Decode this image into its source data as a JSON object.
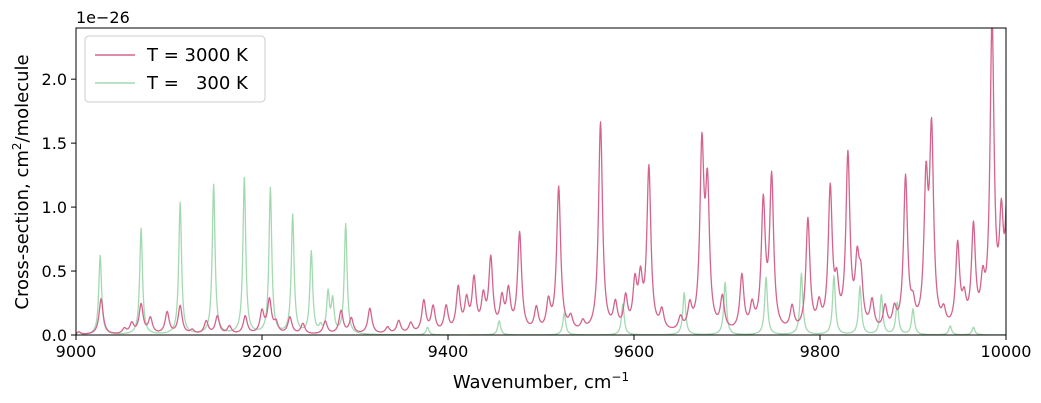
{
  "chart_data": {
    "type": "line",
    "xlabel": "Wavenumber, cm",
    "xlabel_sup": "−1",
    "ylabel": "Cross-section, cm",
    "ylabel_sup": "2",
    "ylabel_tail": "/molecule",
    "offset_text": "1e−26",
    "xlim": [
      9000,
      10000
    ],
    "ylim": [
      0,
      2.4
    ],
    "x_ticks": [
      "9000",
      "9200",
      "9400",
      "9600",
      "9800",
      "10000"
    ],
    "y_ticks": [
      "0.0",
      "0.5",
      "1.0",
      "1.5",
      "2.0"
    ],
    "legend_position": "upper-left",
    "grid": false,
    "series": [
      {
        "name": "T = 3000 K",
        "color": "#d4638d",
        "width_cm1": 2.6,
        "peaks": [
          [
            9003,
            0.02
          ],
          [
            9027,
            0.28
          ],
          [
            9052,
            0.04
          ],
          [
            9060,
            0.08
          ],
          [
            9070,
            0.23
          ],
          [
            9080,
            0.12
          ],
          [
            9098,
            0.17
          ],
          [
            9112,
            0.22
          ],
          [
            9125,
            0.03
          ],
          [
            9140,
            0.1
          ],
          [
            9152,
            0.14
          ],
          [
            9165,
            0.06
          ],
          [
            9182,
            0.14
          ],
          [
            9200,
            0.17
          ],
          [
            9208,
            0.26
          ],
          [
            9215,
            0.08
          ],
          [
            9230,
            0.13
          ],
          [
            9244,
            0.08
          ],
          [
            9268,
            0.1
          ],
          [
            9285,
            0.18
          ],
          [
            9296,
            0.12
          ],
          [
            9316,
            0.2
          ],
          [
            9335,
            0.05
          ],
          [
            9347,
            0.1
          ],
          [
            9360,
            0.08
          ],
          [
            9374,
            0.25
          ],
          [
            9384,
            0.2
          ],
          [
            9398,
            0.2
          ],
          [
            9411,
            0.34
          ],
          [
            9420,
            0.23
          ],
          [
            9428,
            0.4
          ],
          [
            9438,
            0.25
          ],
          [
            9446,
            0.56
          ],
          [
            9458,
            0.24
          ],
          [
            9465,
            0.3
          ],
          [
            9477,
            0.77
          ],
          [
            9495,
            0.18
          ],
          [
            9508,
            0.22
          ],
          [
            9519,
            1.13
          ],
          [
            9532,
            0.1
          ],
          [
            9545,
            0.07
          ],
          [
            9564,
            1.64
          ],
          [
            9580,
            0.2
          ],
          [
            9591,
            0.25
          ],
          [
            9601,
            0.35
          ],
          [
            9607,
            0.36
          ],
          [
            9616,
            1.27
          ],
          [
            9630,
            0.15
          ],
          [
            9650,
            0.1
          ],
          [
            9660,
            0.18
          ],
          [
            9673,
            1.39
          ],
          [
            9679,
            1.06
          ],
          [
            9695,
            0.25
          ],
          [
            9716,
            0.43
          ],
          [
            9727,
            0.18
          ],
          [
            9739,
            0.98
          ],
          [
            9748,
            1.18
          ],
          [
            9770,
            0.18
          ],
          [
            9787,
            0.87
          ],
          [
            9799,
            0.18
          ],
          [
            9811,
            1.09
          ],
          [
            9818,
            0.3
          ],
          [
            9830,
            1.35
          ],
          [
            9840,
            0.47
          ],
          [
            9844,
            0.35
          ],
          [
            9856,
            0.22
          ],
          [
            9870,
            0.18
          ],
          [
            9880,
            0.15
          ],
          [
            9892,
            1.19
          ],
          [
            9900,
            0.15
          ],
          [
            9914,
            1.08
          ],
          [
            9920,
            1.49
          ],
          [
            9933,
            0.12
          ],
          [
            9948,
            0.65
          ],
          [
            9955,
            0.2
          ],
          [
            9965,
            0.78
          ],
          [
            9975,
            0.3
          ],
          [
            9985,
            2.38
          ],
          [
            9995,
            0.75
          ],
          [
            10002,
            1.22
          ]
        ]
      },
      {
        "name": "T =   300 K",
        "color": "#a3d9b1",
        "width_cm1": 1.8,
        "peaks": [
          [
            9003,
            0.02
          ],
          [
            9026,
            0.62
          ],
          [
            9070,
            0.83
          ],
          [
            9112,
            1.03
          ],
          [
            9148,
            1.17
          ],
          [
            9181,
            1.22
          ],
          [
            9209,
            1.14
          ],
          [
            9233,
            0.93
          ],
          [
            9253,
            0.64
          ],
          [
            9263,
            0.05
          ],
          [
            9271,
            0.31
          ],
          [
            9276,
            0.25
          ],
          [
            9290,
            0.86
          ],
          [
            9378,
            0.06
          ],
          [
            9455,
            0.11
          ],
          [
            9525,
            0.17
          ],
          [
            9588,
            0.24
          ],
          [
            9654,
            0.33
          ],
          [
            9698,
            0.41
          ],
          [
            9742,
            0.45
          ],
          [
            9780,
            0.48
          ],
          [
            9815,
            0.46
          ],
          [
            9843,
            0.38
          ],
          [
            9866,
            0.31
          ],
          [
            9883,
            0.25
          ],
          [
            9900,
            0.2
          ],
          [
            9940,
            0.07
          ],
          [
            9965,
            0.06
          ]
        ]
      }
    ]
  }
}
